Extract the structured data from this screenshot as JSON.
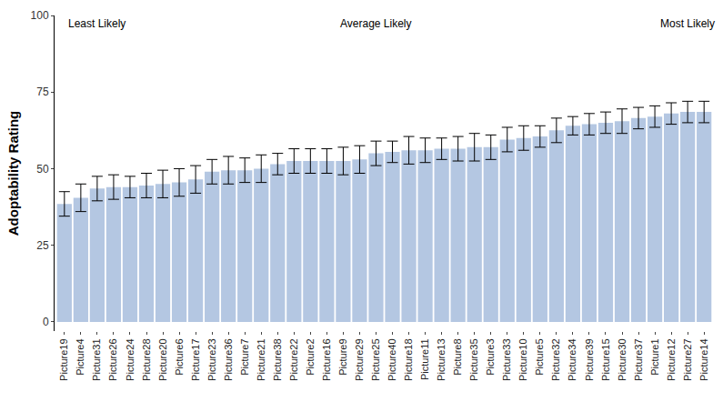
{
  "chart_data": {
    "type": "bar",
    "ylabel": "Adoptability Rating",
    "categories": [
      "Picture19",
      "Picture4",
      "Picture31",
      "Picture26",
      "Picture24",
      "Picture28",
      "Picture20",
      "Picture6",
      "Picture17",
      "Picture23",
      "Picture36",
      "Picture7",
      "Picture21",
      "Picture38",
      "Picture22",
      "Picture2",
      "Picture16",
      "Picture9",
      "Picture29",
      "Picture25",
      "Picture40",
      "Picture18",
      "Picture11",
      "Picture13",
      "Picture8",
      "Picture35",
      "Picture3",
      "Picture33",
      "Picture10",
      "Picture5",
      "Picture32",
      "Picture34",
      "Picture39",
      "Picture15",
      "Picture30",
      "Picture37",
      "Picture1",
      "Picture12",
      "Picture27",
      "Picture14"
    ],
    "values": [
      38.5,
      40.5,
      43.5,
      44,
      44,
      44.5,
      45,
      45.5,
      46.5,
      49,
      49.5,
      49.5,
      50,
      51.5,
      52.5,
      52.5,
      52.5,
      52.5,
      53,
      55,
      55.5,
      56,
      56,
      56.5,
      56.5,
      57,
      57,
      59.5,
      60,
      60.5,
      62.5,
      64,
      64.5,
      65,
      65.5,
      66.5,
      67,
      68,
      68.5,
      68.5
    ],
    "errors": [
      4,
      4.5,
      4,
      4,
      3.5,
      4,
      4.5,
      4.5,
      4.5,
      4,
      4.5,
      4,
      4.5,
      3.5,
      4,
      4,
      4,
      4.5,
      4.5,
      4,
      3.5,
      4.5,
      4,
      3.5,
      4,
      4.5,
      4,
      4,
      4,
      3.5,
      4,
      3,
      3.5,
      3.5,
      4,
      3.5,
      3.5,
      3.5,
      3.5,
      3.5
    ],
    "color": "#b4c7e2",
    "ylim": [
      -3,
      100
    ],
    "yticks": [
      0,
      25,
      50,
      75,
      100
    ],
    "grid": false,
    "annotations": [
      {
        "text": "Least Likely",
        "x": "Picture31"
      },
      {
        "text": "Average Likely",
        "x": "Picture25"
      },
      {
        "text": "Most Likely",
        "x": "Picture27"
      }
    ]
  }
}
